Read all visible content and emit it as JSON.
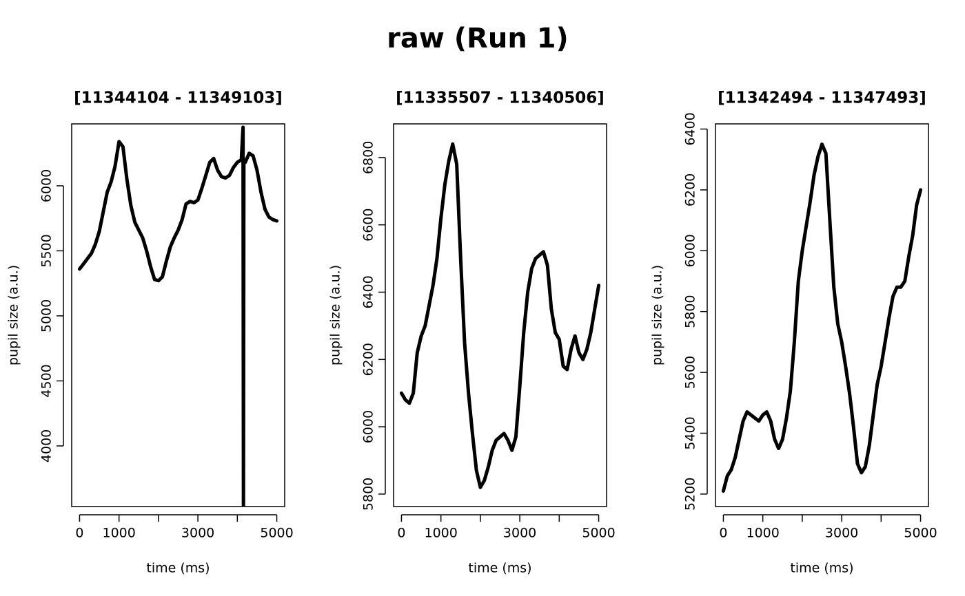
{
  "title": "raw (Run 1)",
  "chart_data": [
    {
      "type": "line",
      "title": "[11344104 - 11349103]",
      "xlabel": "time (ms)",
      "ylabel": "pupil size (a.u.)",
      "color": "#000000",
      "x": [
        0,
        100,
        200,
        300,
        400,
        500,
        600,
        700,
        800,
        900,
        1000,
        1100,
        1200,
        1300,
        1400,
        1500,
        1600,
        1700,
        1800,
        1900,
        2000,
        2100,
        2200,
        2300,
        2400,
        2500,
        2600,
        2700,
        2800,
        2900,
        3000,
        3100,
        3200,
        3300,
        3400,
        3500,
        3600,
        3700,
        3800,
        3900,
        4000,
        4100,
        4145,
        4155,
        4165,
        4200,
        4300,
        4400,
        4500,
        4600,
        4700,
        4800,
        4900,
        5000
      ],
      "values": [
        5360,
        5400,
        5440,
        5480,
        5550,
        5650,
        5800,
        5950,
        6030,
        6150,
        6340,
        6300,
        6050,
        5850,
        5720,
        5660,
        5600,
        5500,
        5380,
        5280,
        5270,
        5300,
        5420,
        5530,
        5600,
        5660,
        5740,
        5860,
        5880,
        5870,
        5890,
        5980,
        6080,
        6180,
        6210,
        6120,
        6070,
        6060,
        6080,
        6140,
        6180,
        6200,
        6450,
        3450,
        6200,
        6180,
        6250,
        6230,
        6120,
        5950,
        5820,
        5760,
        5740,
        5730
      ],
      "xlim": [
        -200,
        5200
      ],
      "ylim": [
        3534,
        6476
      ],
      "xticks": [
        0,
        1000,
        {
          "value": 2000,
          "label": null
        },
        3000,
        {
          "value": 4000,
          "label": null
        },
        5000
      ],
      "yticks": [
        4000,
        4500,
        5000,
        5500,
        6000
      ]
    },
    {
      "type": "line",
      "title": "[11335507 - 11340506]",
      "xlabel": "time (ms)",
      "ylabel": "pupil size (a.u.)",
      "color": "#000000",
      "x": [
        0,
        100,
        200,
        300,
        400,
        500,
        600,
        700,
        800,
        900,
        1000,
        1100,
        1200,
        1300,
        1400,
        1500,
        1600,
        1700,
        1800,
        1900,
        2000,
        2100,
        2200,
        2300,
        2400,
        2500,
        2600,
        2700,
        2800,
        2900,
        3000,
        3100,
        3200,
        3300,
        3400,
        3500,
        3600,
        3700,
        3800,
        3900,
        4000,
        4100,
        4200,
        4300,
        4400,
        4500,
        4600,
        4700,
        4800,
        4900,
        5000
      ],
      "values": [
        6100,
        6080,
        6070,
        6100,
        6220,
        6270,
        6300,
        6360,
        6420,
        6500,
        6620,
        6720,
        6790,
        6840,
        6780,
        6500,
        6250,
        6100,
        5980,
        5870,
        5820,
        5840,
        5880,
        5930,
        5960,
        5970,
        5980,
        5960,
        5930,
        5970,
        6120,
        6280,
        6400,
        6470,
        6500,
        6510,
        6520,
        6480,
        6350,
        6280,
        6260,
        6180,
        6170,
        6230,
        6270,
        6220,
        6200,
        6230,
        6280,
        6350,
        6420
      ],
      "xlim": [
        -200,
        5200
      ],
      "ylim": [
        5763,
        6900
      ],
      "xticks": [
        0,
        1000,
        {
          "value": 2000,
          "label": null
        },
        3000,
        {
          "value": 4000,
          "label": null
        },
        5000
      ],
      "yticks": [
        5800,
        6000,
        6200,
        6400,
        6600,
        6800
      ]
    },
    {
      "type": "line",
      "title": "[11342494 - 11347493]",
      "xlabel": "time (ms)",
      "ylabel": "pupil size (a.u.)",
      "color": "#000000",
      "x": [
        0,
        100,
        200,
        300,
        400,
        500,
        600,
        700,
        800,
        900,
        1000,
        1100,
        1200,
        1300,
        1400,
        1500,
        1600,
        1700,
        1800,
        1900,
        2000,
        2100,
        2200,
        2300,
        2400,
        2500,
        2600,
        2700,
        2800,
        2900,
        3000,
        3100,
        3200,
        3300,
        3400,
        3500,
        3600,
        3700,
        3800,
        3900,
        4000,
        4100,
        4200,
        4300,
        4400,
        4500,
        4600,
        4700,
        4800,
        4900,
        5000
      ],
      "values": [
        5210,
        5260,
        5280,
        5320,
        5380,
        5440,
        5470,
        5460,
        5450,
        5440,
        5460,
        5470,
        5440,
        5380,
        5350,
        5380,
        5450,
        5540,
        5700,
        5900,
        6000,
        6080,
        6160,
        6250,
        6310,
        6350,
        6320,
        6100,
        5880,
        5760,
        5700,
        5620,
        5530,
        5420,
        5300,
        5270,
        5290,
        5360,
        5460,
        5560,
        5620,
        5700,
        5780,
        5850,
        5880,
        5880,
        5900,
        5980,
        6050,
        6150,
        6200
      ],
      "xlim": [
        -200,
        5200
      ],
      "ylim": [
        5159,
        6417
      ],
      "xticks": [
        0,
        1000,
        {
          "value": 2000,
          "label": null
        },
        3000,
        {
          "value": 4000,
          "label": null
        },
        5000
      ],
      "yticks": [
        5200,
        5400,
        5600,
        5800,
        6000,
        6200,
        6400
      ]
    }
  ]
}
